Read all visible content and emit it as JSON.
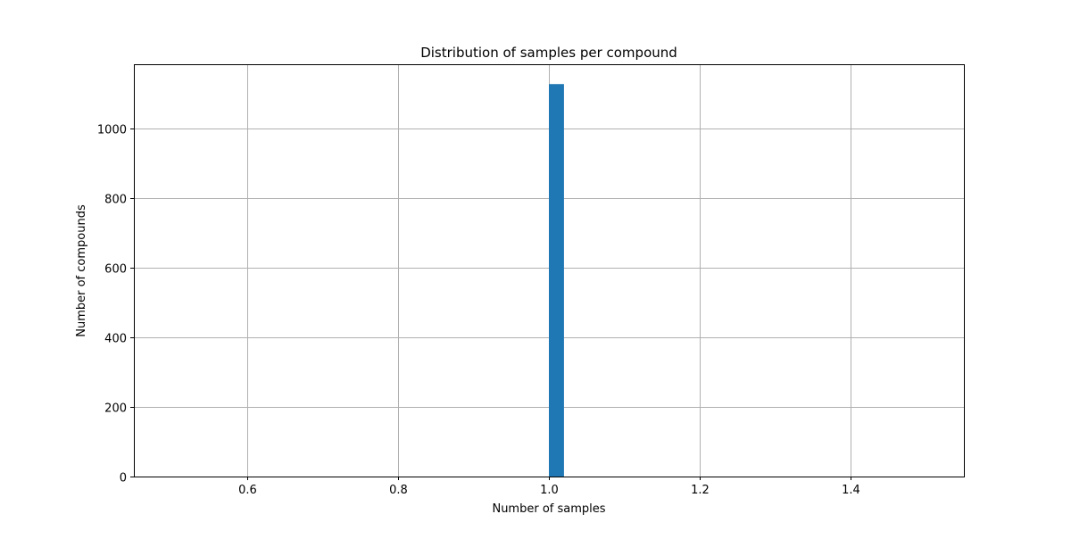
{
  "chart_data": {
    "type": "bar",
    "title": "Distribution of samples per compound",
    "xlabel": "Number of samples",
    "ylabel": "Number of compounds",
    "xlim": [
      0.45,
      1.55
    ],
    "ylim": [
      0,
      1185
    ],
    "x_ticks": [
      0.6,
      0.8,
      1.0,
      1.2,
      1.4
    ],
    "x_tick_labels": [
      "0.6",
      "0.8",
      "1.0",
      "1.2",
      "1.4"
    ],
    "y_ticks": [
      0,
      200,
      400,
      600,
      800,
      1000
    ],
    "y_tick_labels": [
      "0",
      "200",
      "400",
      "600",
      "800",
      "1000"
    ],
    "bins": [
      {
        "x_start": 1.0,
        "x_end": 1.02,
        "value": 1128
      }
    ],
    "grid": true,
    "legend": "none",
    "colors": {
      "bar": "#1f77b4",
      "grid": "#b0b0b0",
      "axis": "#000000"
    }
  }
}
